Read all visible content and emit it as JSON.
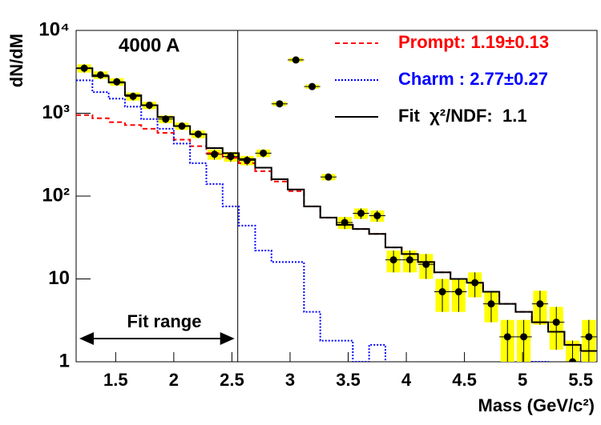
{
  "chart_data": {
    "type": "histogram",
    "annotation": "4000 A",
    "fit_range_label": "Fit range",
    "fit_range": [
      1.16,
      2.55
    ],
    "xlabel": "Mass (GeV/c²)",
    "ylabel": "dN/dM",
    "log_y": true,
    "xlim": [
      1.16,
      5.64
    ],
    "ylim": [
      1,
      10000
    ],
    "xticks": [
      1.5,
      2,
      2.5,
      3,
      3.5,
      4,
      4.5,
      5,
      5.5
    ],
    "yticks": [
      1,
      10,
      {
        "value": 100,
        "label": "10²"
      },
      {
        "value": 1000,
        "label": "10³"
      },
      {
        "value": 10000,
        "label": "10⁴"
      }
    ],
    "bins": [
      1.16,
      1.3,
      1.44,
      1.58,
      1.72,
      1.86,
      2.0,
      2.14,
      2.28,
      2.42,
      2.56,
      2.7,
      2.84,
      2.98,
      3.12,
      3.26,
      3.4,
      3.54,
      3.68,
      3.82,
      3.96,
      4.1,
      4.24,
      4.38,
      4.52,
      4.66,
      4.8,
      4.94,
      5.08,
      5.22,
      5.36,
      5.5,
      5.64
    ],
    "points": {
      "color": "#000000",
      "band_color": "#ffff00",
      "values": [
        3500,
        2900,
        2400,
        1600,
        1250,
        850,
        700,
        560,
        320,
        300,
        270,
        330,
        1300,
        4400,
        2100,
        170,
        48,
        62,
        58,
        17,
        17,
        15,
        7,
        7,
        9,
        5,
        2,
        2,
        5,
        3,
        1,
        2
      ],
      "errors": [
        400,
        300,
        250,
        180,
        130,
        90,
        70,
        60,
        45,
        40,
        35,
        35,
        80,
        250,
        120,
        15,
        8,
        9,
        9,
        5,
        5,
        5,
        3,
        3,
        3,
        2,
        1.2,
        1.2,
        2.2,
        1.6,
        0.8,
        1.2
      ]
    },
    "series": [
      {
        "name": "Prompt: 1.19±0.13",
        "color": "#ff0000",
        "dash": "6,4",
        "values": [
          950,
          870,
          780,
          720,
          650,
          580,
          480,
          400,
          330,
          290,
          250,
          200,
          150,
          115,
          75,
          55,
          45,
          40,
          35,
          24,
          20,
          16,
          12,
          10,
          9,
          7,
          5,
          4,
          3,
          2.3,
          1.6,
          1.35
        ]
      },
      {
        "name": "Charm : 2.77±0.27",
        "color": "#0000ff",
        "dash": "2,2",
        "values": [
          2500,
          1800,
          1500,
          1200,
          850,
          650,
          430,
          250,
          140,
          75,
          44,
          22,
          16,
          16,
          4,
          1.8,
          1.8,
          1.0,
          1.6,
          0.9,
          0.9,
          0.9,
          0.9,
          0.9,
          0.9,
          0.9,
          0.9,
          0.9,
          1.0,
          0.9,
          0.9,
          0.9
        ]
      },
      {
        "name": "Fit  χ²/NDF:  1.1",
        "color": "#000000",
        "dash": "",
        "values": [
          3500,
          2800,
          2350,
          1650,
          1250,
          900,
          700,
          560,
          380,
          330,
          280,
          220,
          160,
          120,
          75,
          55,
          45,
          40,
          35,
          24,
          20,
          16,
          12,
          10,
          9,
          7,
          5,
          4,
          3,
          2.3,
          1.6,
          1.35
        ]
      }
    ]
  }
}
